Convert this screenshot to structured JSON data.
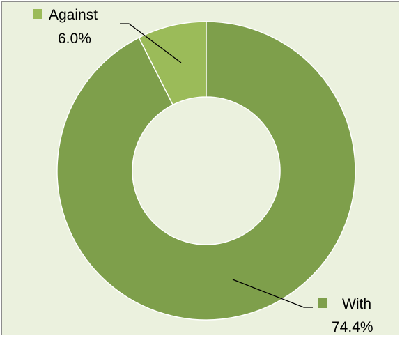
{
  "chart_data": {
    "type": "pie",
    "donut": true,
    "title": "",
    "slices": [
      {
        "name": "Against",
        "value": 6.0,
        "label": "6.0%",
        "color": "#9bbb59"
      },
      {
        "name": "With",
        "value": 74.4,
        "label": "74.4%",
        "color": "#7e9f4b"
      }
    ],
    "legend": "inline-with-leader-lines",
    "background_color": "#ebf1de",
    "border_color": "#8c8c8c"
  }
}
